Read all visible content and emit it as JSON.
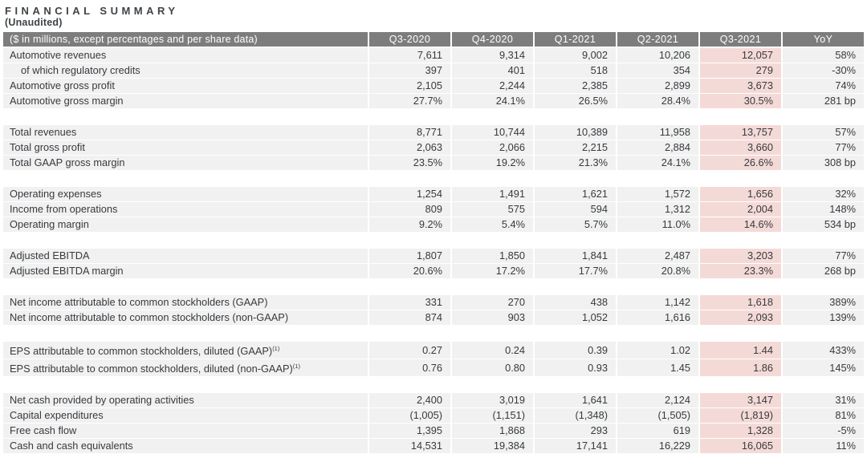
{
  "page": {
    "title": "FINANCIAL SUMMARY",
    "subtitle": "(Unaudited)"
  },
  "colors": {
    "header_bg": "#7d7d7d",
    "header_text": "#ffffff",
    "row_bg": "#f1f1f1",
    "highlight_bg": "#f4dad7",
    "text": "#363a3e"
  },
  "table": {
    "columns": [
      "($ in millions, except percentages and per share data)",
      "Q3-2020",
      "Q4-2020",
      "Q1-2021",
      "Q2-2021",
      "Q3-2021",
      "YoY"
    ],
    "highlighted_column": "Q3-2021",
    "sections": [
      {
        "rows": [
          {
            "label": "Automotive revenues",
            "values": [
              "7,611",
              "9,314",
              "9,002",
              "10,206",
              "12,057",
              "58%"
            ]
          },
          {
            "label": "of which regulatory credits",
            "indent": true,
            "values": [
              "397",
              "401",
              "518",
              "354",
              "279",
              "-30%"
            ]
          },
          {
            "label": "Automotive gross profit",
            "values": [
              "2,105",
              "2,244",
              "2,385",
              "2,899",
              "3,673",
              "74%"
            ]
          },
          {
            "label": "Automotive gross margin",
            "values": [
              "27.7%",
              "24.1%",
              "26.5%",
              "28.4%",
              "30.5%",
              "281 bp"
            ]
          }
        ]
      },
      {
        "rows": [
          {
            "label": "Total revenues",
            "values": [
              "8,771",
              "10,744",
              "10,389",
              "11,958",
              "13,757",
              "57%"
            ]
          },
          {
            "label": "Total gross profit",
            "values": [
              "2,063",
              "2,066",
              "2,215",
              "2,884",
              "3,660",
              "77%"
            ]
          },
          {
            "label": "Total GAAP gross margin",
            "values": [
              "23.5%",
              "19.2%",
              "21.3%",
              "24.1%",
              "26.6%",
              "308 bp"
            ]
          }
        ]
      },
      {
        "rows": [
          {
            "label": "Operating expenses",
            "values": [
              "1,254",
              "1,491",
              "1,621",
              "1,572",
              "1,656",
              "32%"
            ]
          },
          {
            "label": "Income from operations",
            "values": [
              "809",
              "575",
              "594",
              "1,312",
              "2,004",
              "148%"
            ]
          },
          {
            "label": "Operating margin",
            "values": [
              "9.2%",
              "5.4%",
              "5.7%",
              "11.0%",
              "14.6%",
              "534 bp"
            ]
          }
        ]
      },
      {
        "rows": [
          {
            "label": "Adjusted EBITDA",
            "values": [
              "1,807",
              "1,850",
              "1,841",
              "2,487",
              "3,203",
              "77%"
            ]
          },
          {
            "label": "Adjusted EBITDA margin",
            "values": [
              "20.6%",
              "17.2%",
              "17.7%",
              "20.8%",
              "23.3%",
              "268 bp"
            ]
          }
        ]
      },
      {
        "rows": [
          {
            "label": "Net income attributable to common stockholders (GAAP)",
            "values": [
              "331",
              "270",
              "438",
              "1,142",
              "1,618",
              "389%"
            ]
          },
          {
            "label": "Net income attributable to common stockholders (non-GAAP)",
            "values": [
              "874",
              "903",
              "1,052",
              "1,616",
              "2,093",
              "139%"
            ]
          }
        ]
      },
      {
        "rows": [
          {
            "label": "EPS attributable to common stockholders, diluted (GAAP)",
            "sup": "(1)",
            "values": [
              "0.27",
              "0.24",
              "0.39",
              "1.02",
              "1.44",
              "433%"
            ]
          },
          {
            "label": "EPS attributable to common stockholders, diluted (non-GAAP)",
            "sup": "(1)",
            "values": [
              "0.76",
              "0.80",
              "0.93",
              "1.45",
              "1.86",
              "145%"
            ]
          }
        ]
      },
      {
        "rows": [
          {
            "label": "Net cash provided by operating activities",
            "values": [
              "2,400",
              "3,019",
              "1,641",
              "2,124",
              "3,147",
              "31%"
            ]
          },
          {
            "label": "Capital expenditures",
            "values": [
              "(1,005)",
              "(1,151)",
              "(1,348)",
              "(1,505)",
              "(1,819)",
              "81%"
            ]
          },
          {
            "label": "Free cash flow",
            "values": [
              "1,395",
              "1,868",
              "293",
              "619",
              "1,328",
              "-5%"
            ]
          },
          {
            "label": "Cash and cash equivalents",
            "values": [
              "14,531",
              "19,384",
              "17,141",
              "16,229",
              "16,065",
              "11%"
            ]
          }
        ]
      }
    ]
  }
}
